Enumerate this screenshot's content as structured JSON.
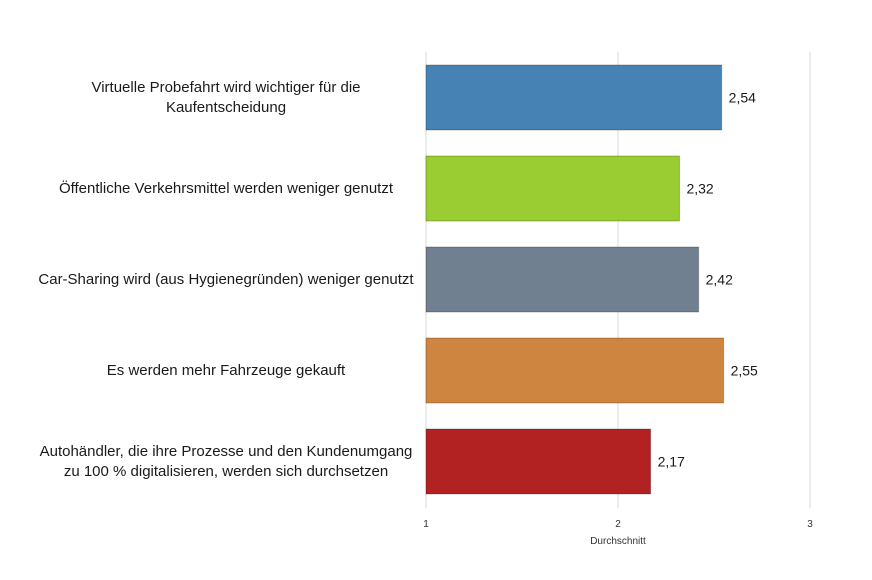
{
  "chart_data": {
    "type": "bar",
    "orientation": "horizontal",
    "categories": [
      "Virtuelle Probefahrt wird wichtiger für die Kaufentscheidung",
      "Öffentliche Verkehrsmittel werden weniger genutzt",
      "Car-Sharing wird (aus Hygienegründen) weniger genutzt",
      "Es werden mehr Fahrzeuge gekauft",
      "Autohändler, die ihre Prozesse und den Kundenumgang zu 100 % digitalisieren, werden sich durchsetzen"
    ],
    "values": [
      2.54,
      2.32,
      2.42,
      2.55,
      2.17
    ],
    "value_labels": [
      "2,54",
      "2,32",
      "2,42",
      "2,55",
      "2,17"
    ],
    "colors": [
      "#4682b4",
      "#9acd32",
      "#708090",
      "#cd853f",
      "#b22222"
    ],
    "xlim": [
      1,
      3
    ],
    "ticks": [
      1,
      2,
      3
    ],
    "tick_labels": [
      "1",
      "2",
      "3"
    ],
    "xlabel": "Durchschnitt",
    "grid": true
  }
}
